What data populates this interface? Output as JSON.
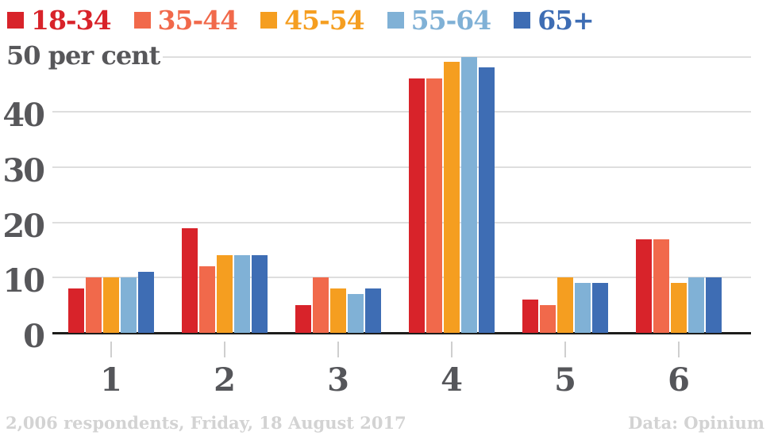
{
  "legend": {
    "items": [
      {
        "label": "18-34",
        "color": "#d8232a"
      },
      {
        "label": "35-44",
        "color": "#f1694b"
      },
      {
        "label": "45-54",
        "color": "#f59e20"
      },
      {
        "label": "55-64",
        "color": "#80b1d6"
      },
      {
        "label": "65+",
        "color": "#3e6db4"
      }
    ]
  },
  "chart_data": {
    "type": "bar",
    "title": "",
    "ylabel": "50 per cent",
    "categories": [
      "1",
      "2",
      "3",
      "4",
      "5",
      "6"
    ],
    "series": [
      {
        "name": "18-34",
        "color": "#d8232a",
        "values": [
          8,
          19,
          5,
          46,
          6,
          17
        ]
      },
      {
        "name": "35-44",
        "color": "#f1694b",
        "values": [
          10,
          12,
          10,
          46,
          5,
          17
        ]
      },
      {
        "name": "45-54",
        "color": "#f59e20",
        "values": [
          10,
          14,
          8,
          49,
          10,
          9
        ]
      },
      {
        "name": "55-64",
        "color": "#80b1d6",
        "values": [
          10,
          14,
          7,
          50,
          9,
          10
        ]
      },
      {
        "name": "65+",
        "color": "#3e6db4",
        "values": [
          11,
          14,
          8,
          48,
          9,
          10
        ]
      }
    ],
    "yticks": [
      0,
      10,
      20,
      30,
      40,
      50
    ],
    "ylim": [
      0,
      50
    ],
    "grid": true,
    "legend_position": "top"
  },
  "footer": {
    "left": "2,006 respondents, Friday, 18 August 2017",
    "right": "Data: Opinium"
  }
}
